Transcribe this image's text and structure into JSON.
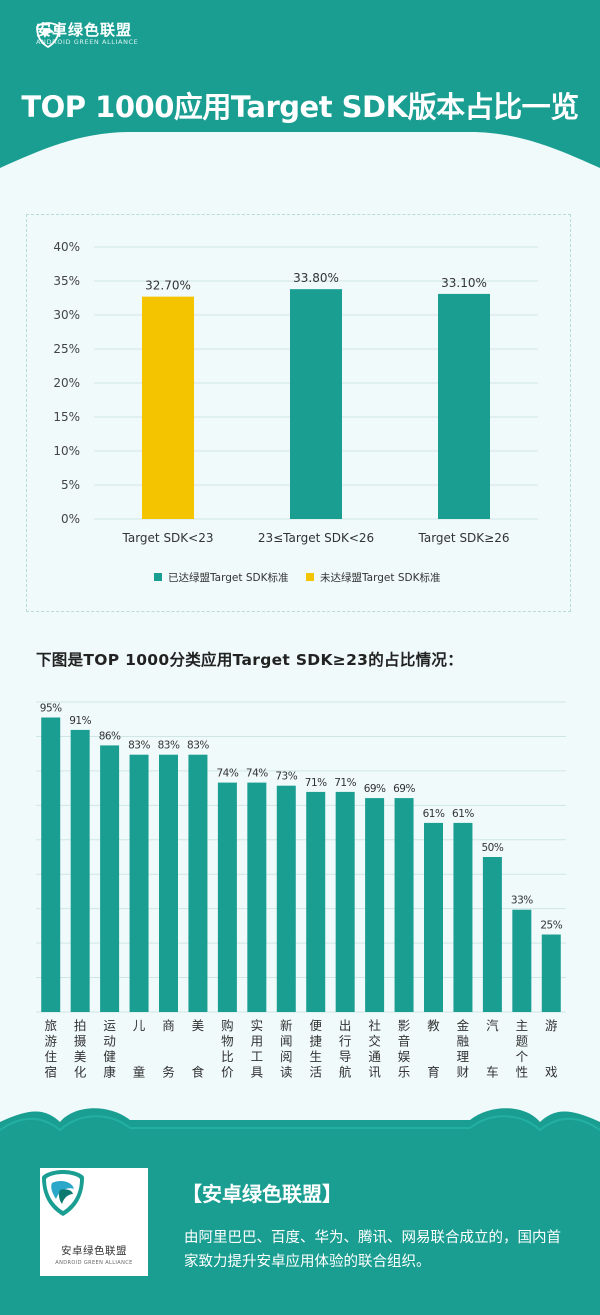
{
  "brand": {
    "name_cn": "安卓绿色联盟",
    "name_en": "ANDROID GREEN ALLIANCE",
    "primary_color": "#1a9e92",
    "accent_color": "#f5c400"
  },
  "title": "TOP 1000应用Target SDK版本占比一览",
  "section2_title": "下图是TOP 1000分类应用Target SDK≥23的占比情况：",
  "footer": {
    "heading": "【安卓绿色联盟】",
    "description": "由阿里巴巴、百度、华为、腾讯、网易联合成立的，国内首家致力提升安卓应用体验的联合组织。"
  },
  "chart_data": [
    {
      "type": "bar",
      "categories": [
        "Target SDK<23",
        "23≤Target SDK<26",
        "Target SDK≥26"
      ],
      "values": [
        32.7,
        33.8,
        33.1
      ],
      "data_labels": [
        "32.70%",
        "33.80%",
        "33.10%"
      ],
      "bar_colors": [
        "#f5c400",
        "#1a9e92",
        "#1a9e92"
      ],
      "ylim": [
        0,
        40
      ],
      "yticks": [
        "0%",
        "5%",
        "10%",
        "15%",
        "20%",
        "25%",
        "30%",
        "35%",
        "40%"
      ],
      "grid": true,
      "legend": [
        {
          "label": "已达绿盟Target SDK标准",
          "color": "#1a9e92"
        },
        {
          "label": "未达绿盟Target SDK标准",
          "color": "#f5c400"
        }
      ],
      "legend_position": "bottom"
    },
    {
      "type": "bar",
      "categories": [
        "旅游住宿",
        "拍摄美化",
        "运动健康",
        "儿童",
        "商务",
        "美食",
        "购物比价",
        "实用工具",
        "新闻阅读",
        "便捷生活",
        "出行导航",
        "社交通讯",
        "影音娱乐",
        "教育",
        "金融理财",
        "汽车",
        "主题个性",
        "游戏"
      ],
      "values": [
        95,
        91,
        86,
        83,
        83,
        83,
        74,
        74,
        73,
        71,
        71,
        69,
        69,
        61,
        61,
        50,
        33,
        25
      ],
      "data_labels": [
        "95%",
        "91%",
        "86%",
        "83%",
        "83%",
        "83%",
        "74%",
        "74%",
        "73%",
        "71%",
        "71%",
        "69%",
        "69%",
        "61%",
        "61%",
        "50%",
        "33%",
        "25%"
      ],
      "ylim": [
        0,
        100
      ],
      "grid": true,
      "bar_color": "#1a9e92"
    }
  ]
}
